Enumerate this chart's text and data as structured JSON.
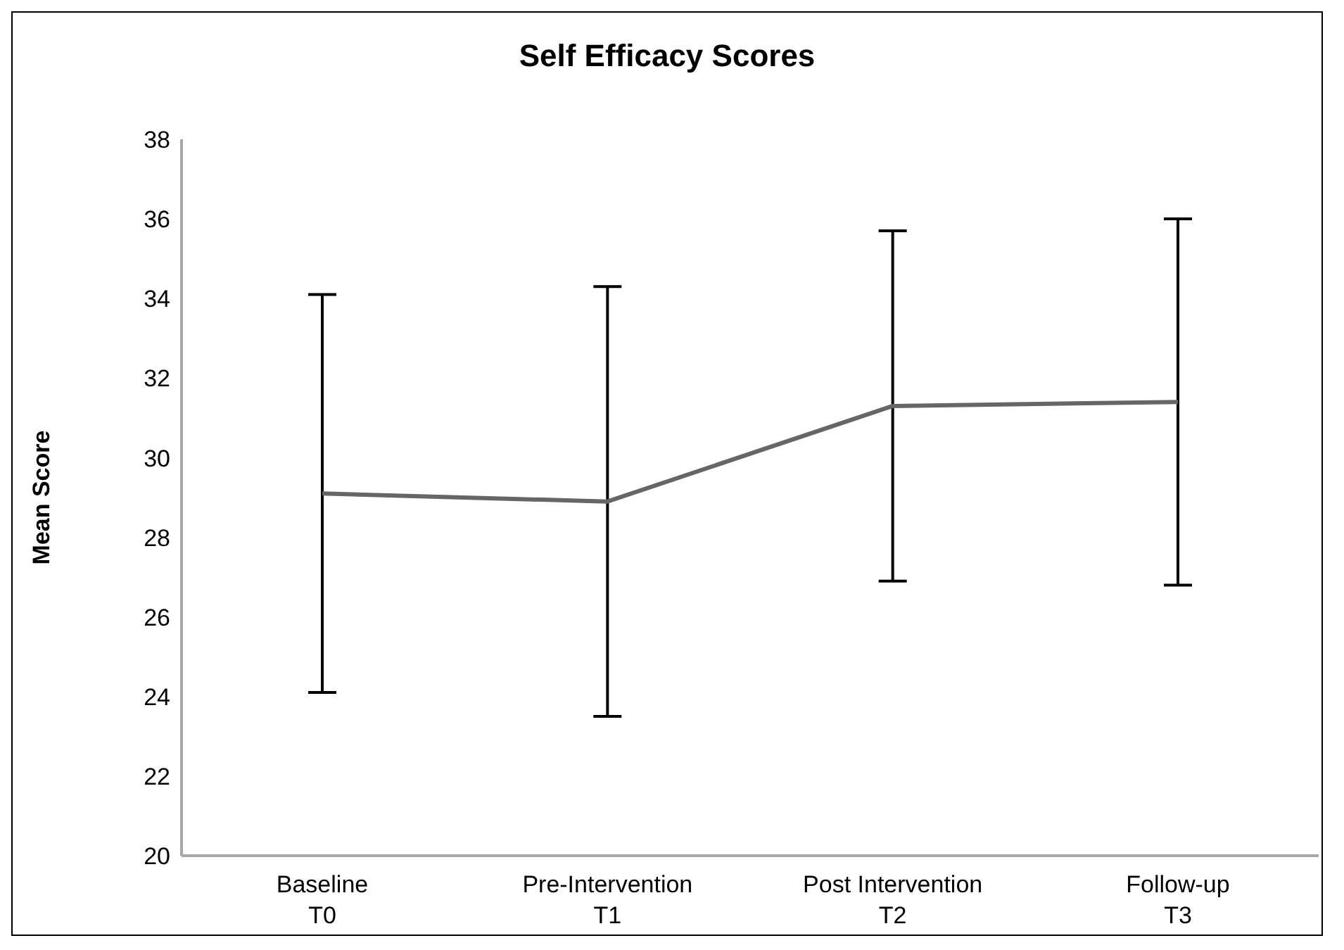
{
  "chart_data": {
    "type": "line",
    "title": "Self Efficacy Scores",
    "ylabel": "Mean Score",
    "categories": [
      "Baseline\nT0",
      "Pre-Intervention\nT1",
      "Post Intervention\nT2",
      "Follow-up\nT3"
    ],
    "series": [
      {
        "color": "#666666",
        "values": [
          29.1,
          28.9,
          31.3,
          31.4
        ],
        "errors": [
          [
            24.1,
            34.1
          ],
          [
            23.5,
            34.3
          ],
          [
            26.9,
            35.7
          ],
          [
            26.8,
            36.0
          ]
        ]
      }
    ],
    "ylim": [
      20,
      38
    ],
    "yticks": [
      20,
      22,
      24,
      26,
      28,
      30,
      32,
      34,
      36,
      38
    ],
    "grid": false,
    "marker": "none",
    "line_style": "solid"
  }
}
